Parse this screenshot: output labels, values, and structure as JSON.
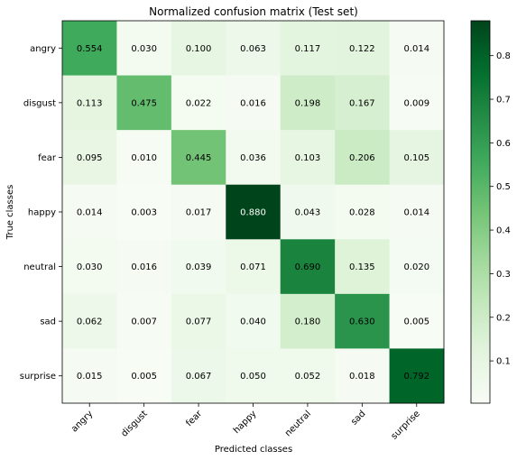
{
  "chart_data": {
    "type": "heatmap",
    "title": "Normalized confusion matrix (Test set)",
    "xlabel": "Predicted classes",
    "ylabel": "True classes",
    "x_categories": [
      "angry",
      "disgust",
      "fear",
      "happy",
      "neutral",
      "sad",
      "surprise"
    ],
    "y_categories": [
      "angry",
      "disgust",
      "fear",
      "happy",
      "neutral",
      "sad",
      "surprise"
    ],
    "values": [
      [
        0.554,
        0.03,
        0.1,
        0.063,
        0.117,
        0.122,
        0.014
      ],
      [
        0.113,
        0.475,
        0.022,
        0.016,
        0.198,
        0.167,
        0.009
      ],
      [
        0.095,
        0.01,
        0.445,
        0.036,
        0.103,
        0.206,
        0.105
      ],
      [
        0.014,
        0.003,
        0.017,
        0.88,
        0.043,
        0.028,
        0.014
      ],
      [
        0.03,
        0.016,
        0.039,
        0.071,
        0.69,
        0.135,
        0.02
      ],
      [
        0.062,
        0.007,
        0.077,
        0.04,
        0.18,
        0.63,
        0.005
      ],
      [
        0.015,
        0.005,
        0.067,
        0.05,
        0.052,
        0.018,
        0.792
      ]
    ],
    "value_labels": [
      [
        "0.554",
        "0.030",
        "0.100",
        "0.063",
        "0.117",
        "0.122",
        "0.014"
      ],
      [
        "0.113",
        "0.475",
        "0.022",
        "0.016",
        "0.198",
        "0.167",
        "0.009"
      ],
      [
        "0.095",
        "0.010",
        "0.445",
        "0.036",
        "0.103",
        "0.206",
        "0.105"
      ],
      [
        "0.014",
        "0.003",
        "0.017",
        "0.880",
        "0.043",
        "0.028",
        "0.014"
      ],
      [
        "0.030",
        "0.016",
        "0.039",
        "0.071",
        "0.690",
        "0.135",
        "0.020"
      ],
      [
        "0.062",
        "0.007",
        "0.077",
        "0.040",
        "0.180",
        "0.630",
        "0.005"
      ],
      [
        "0.015",
        "0.005",
        "0.067",
        "0.050",
        "0.052",
        "0.018",
        "0.792"
      ]
    ],
    "colormap": "Greens",
    "color_range": [
      0.003,
      0.88
    ],
    "colorbar": {
      "ticks": [
        0.1,
        0.2,
        0.3,
        0.4,
        0.5,
        0.6,
        0.7,
        0.8
      ],
      "tick_labels": [
        "0.1",
        "0.2",
        "0.3",
        "0.4",
        "0.5",
        "0.6",
        "0.7",
        "0.8"
      ],
      "placement": "right"
    },
    "colors": {
      "low": "#f7fcf5",
      "high": "#00441b",
      "text_dark": "#000000",
      "text_light": "#ffffff"
    }
  }
}
